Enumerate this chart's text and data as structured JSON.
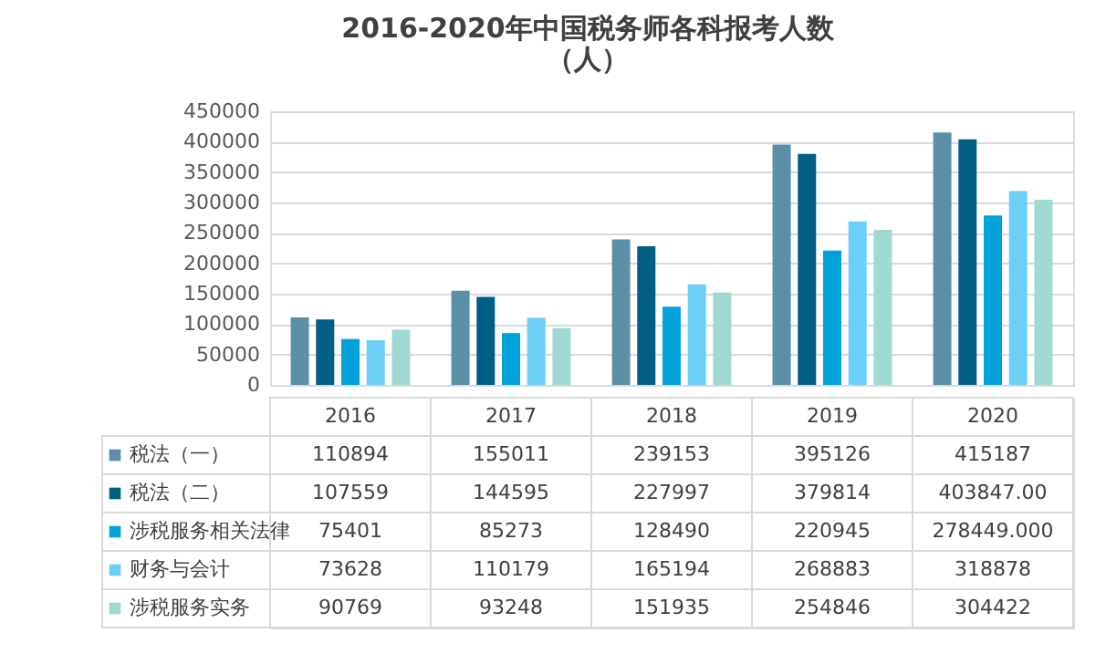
{
  "chart_data": {
    "type": "bar",
    "title": "2016-2020年中国税务师各科报考人数（人）",
    "categories": [
      "2016",
      "2017",
      "2018",
      "2019",
      "2020"
    ],
    "series": [
      {
        "name": "税法（一）",
        "color": "#5b8fa8",
        "values": [
          110894,
          155011,
          239153,
          395126,
          415187
        ],
        "value_labels": [
          "110894",
          "155011",
          "239153",
          "395126",
          "415187"
        ]
      },
      {
        "name": "税法（二）",
        "color": "#005f84",
        "values": [
          107559,
          144595,
          227997,
          379814,
          403847
        ],
        "value_labels": [
          "107559",
          "144595",
          "227997",
          "379814",
          "403847.00"
        ]
      },
      {
        "name": "涉税服务相关法律",
        "color": "#00a2d9",
        "values": [
          75401,
          85273,
          128490,
          220945,
          278449
        ],
        "value_labels": [
          "75401",
          "85273",
          "128490",
          "220945",
          "278449.000"
        ]
      },
      {
        "name": "财务与会计",
        "color": "#6bcff6",
        "values": [
          73628,
          110179,
          165194,
          268883,
          318878
        ],
        "value_labels": [
          "73628",
          "110179",
          "165194",
          "268883",
          "318878"
        ]
      },
      {
        "name": "涉税服务实务",
        "color": "#a0d8d4",
        "values": [
          90769,
          93248,
          151935,
          254846,
          304422
        ],
        "value_labels": [
          "90769",
          "93248",
          "151935",
          "254846",
          "304422"
        ]
      }
    ],
    "ylim": [
      0,
      450000
    ],
    "yticks": [
      0,
      50000,
      100000,
      150000,
      200000,
      250000,
      300000,
      350000,
      400000,
      450000
    ],
    "grid": "y",
    "legend": "bottom"
  }
}
